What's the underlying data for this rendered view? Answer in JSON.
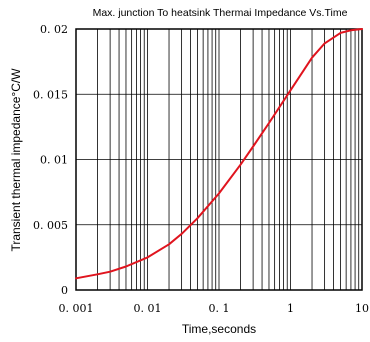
{
  "chart_data": {
    "type": "line",
    "title": "Max. junction To heatsink Thermai Impedance Vs.Time",
    "xlabel": "Time,seconds",
    "ylabel": "Transient thermal impedance°C/W",
    "x_scale": "log",
    "xlim": [
      0.001,
      10
    ],
    "ylim": [
      0,
      0.02
    ],
    "x_ticks": [
      0.001,
      0.01,
      0.1,
      1,
      10
    ],
    "x_tick_labels": [
      "0. 001",
      "0. 01",
      "0. 1",
      "1",
      "10"
    ],
    "y_ticks": [
      0,
      0.005,
      0.01,
      0.015,
      0.02
    ],
    "y_tick_labels": [
      "0",
      "0. 005",
      "0. 01",
      "0. 015",
      "0. 02"
    ],
    "grid": true,
    "series_color": "#e0141e",
    "series": [
      {
        "x": [
          0.001,
          0.002,
          0.003,
          0.005,
          0.01,
          0.02,
          0.03,
          0.05,
          0.1,
          0.2,
          0.3,
          0.5,
          1,
          2,
          3,
          5,
          7,
          10
        ],
        "y": [
          0.0009,
          0.0012,
          0.0014,
          0.0018,
          0.0025,
          0.0035,
          0.0043,
          0.0055,
          0.0074,
          0.0096,
          0.011,
          0.0128,
          0.0153,
          0.0178,
          0.0189,
          0.0197,
          0.0199,
          0.02
        ]
      }
    ]
  }
}
